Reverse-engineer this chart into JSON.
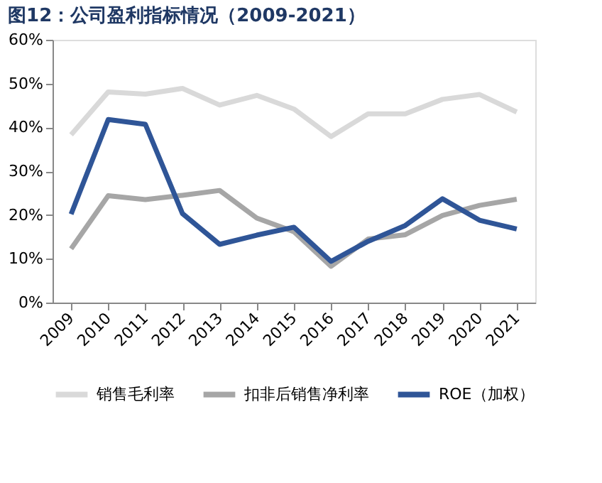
{
  "chart_data": {
    "type": "line",
    "title": "图12：公司盈利指标情况（2009-2021）",
    "categories": [
      "2009",
      "2010",
      "2011",
      "2012",
      "2013",
      "2014",
      "2015",
      "2016",
      "2017",
      "2018",
      "2019",
      "2020",
      "2021"
    ],
    "series": [
      {
        "name": "销售毛利率",
        "color": "#d9d9d9",
        "values": [
          38.3,
          48.1,
          47.6,
          48.9,
          45.1,
          47.3,
          44.2,
          37.9,
          43.1,
          43.1,
          46.4,
          47.5,
          43.5
        ]
      },
      {
        "name": "扣非后销售净利率",
        "color": "#a6a6a6",
        "values": [
          12.3,
          24.4,
          23.5,
          24.5,
          25.6,
          19.3,
          16.2,
          8.3,
          14.5,
          15.5,
          19.9,
          22.2,
          23.6
        ]
      },
      {
        "name": "ROE（加权）",
        "color": "#2f5597",
        "values": [
          20.2,
          41.8,
          40.7,
          20.3,
          13.3,
          15.4,
          17.2,
          9.4,
          14.0,
          17.6,
          23.7,
          18.8,
          16.8
        ]
      }
    ],
    "ylim": [
      0,
      60
    ],
    "yticks": [
      {
        "value": 0,
        "label": "0%"
      },
      {
        "value": 10,
        "label": "10%"
      },
      {
        "value": 20,
        "label": "20%"
      },
      {
        "value": 30,
        "label": "30%"
      },
      {
        "value": 40,
        "label": "40%"
      },
      {
        "value": 50,
        "label": "50%"
      },
      {
        "value": 60,
        "label": "60%"
      }
    ],
    "grid": false,
    "legend": "bottom",
    "marker": "none",
    "line_style": "solid"
  }
}
